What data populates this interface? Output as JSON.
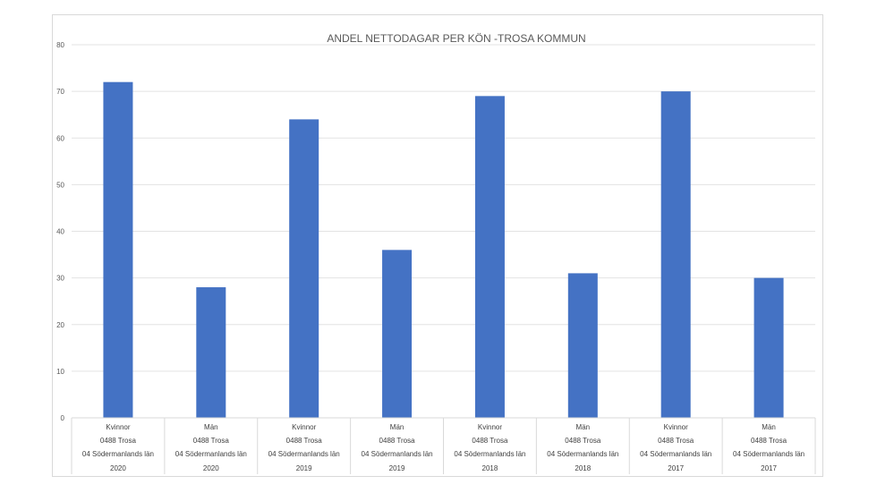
{
  "chart_data": {
    "type": "bar",
    "title": "ANDEL NETTODAGAR PER KÖN -TROSA KOMMUN",
    "xlabel": "",
    "ylabel": "",
    "ylim": [
      0,
      80
    ],
    "yticks": [
      0,
      10,
      20,
      30,
      40,
      50,
      60,
      70,
      80
    ],
    "grid": true,
    "legend": "none",
    "bar_color": "#4472c4",
    "categories": [
      {
        "gender": "Kvinnor",
        "municipality": "0488 Trosa",
        "county": "04 Södermanlands län",
        "year": "2020"
      },
      {
        "gender": "Män",
        "municipality": "0488 Trosa",
        "county": "04 Södermanlands län",
        "year": "2020"
      },
      {
        "gender": "Kvinnor",
        "municipality": "0488 Trosa",
        "county": "04 Södermanlands län",
        "year": "2019"
      },
      {
        "gender": "Män",
        "municipality": "0488 Trosa",
        "county": "04 Södermanlands län",
        "year": "2019"
      },
      {
        "gender": "Kvinnor",
        "municipality": "0488 Trosa",
        "county": "04 Södermanlands län",
        "year": "2018"
      },
      {
        "gender": "Män",
        "municipality": "0488 Trosa",
        "county": "04 Södermanlands län",
        "year": "2018"
      },
      {
        "gender": "Kvinnor",
        "municipality": "0488 Trosa",
        "county": "04 Södermanlands län",
        "year": "2017"
      },
      {
        "gender": "Män",
        "municipality": "0488 Trosa",
        "county": "04 Södermanlands län",
        "year": "2017"
      }
    ],
    "values": [
      72,
      28,
      64,
      36,
      69,
      31,
      70,
      30
    ]
  }
}
